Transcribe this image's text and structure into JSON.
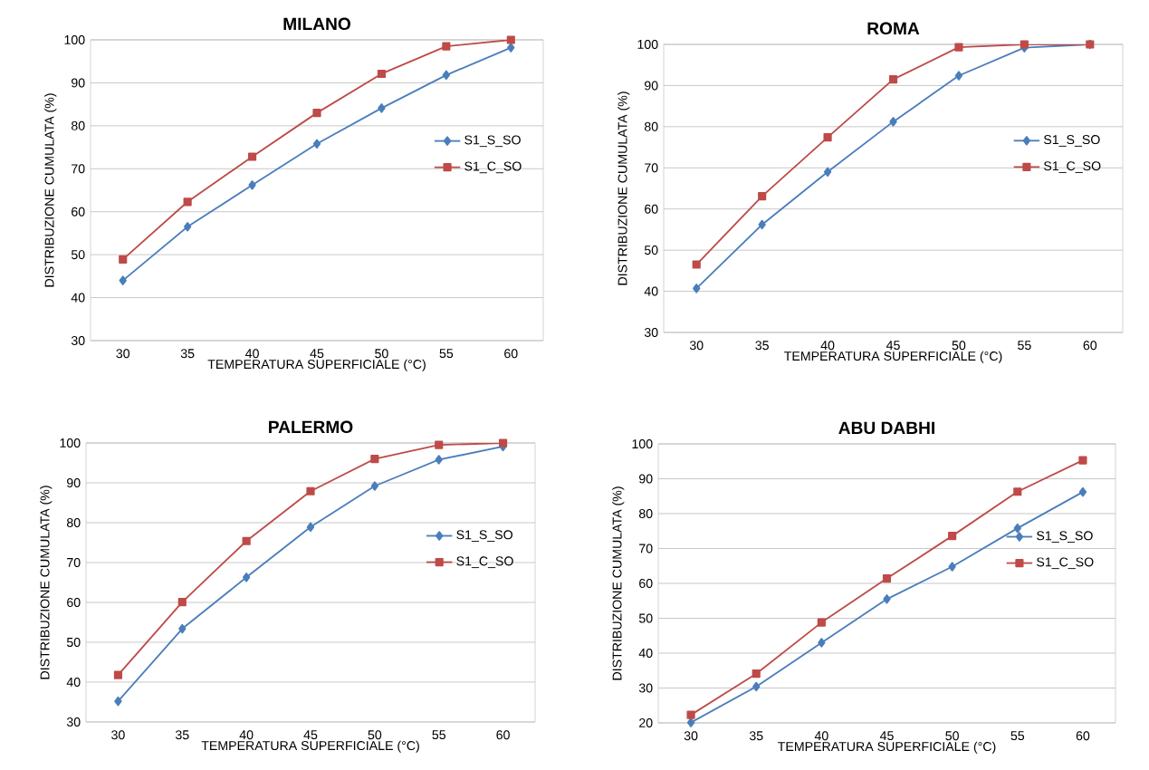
{
  "chart_data": [
    {
      "type": "line",
      "title": "MILANO",
      "xlabel": "TEMPERATURA SUPERFICIALE (°C)",
      "ylabel": "DISTRIBUZIONE CUMULATA (%)",
      "categories": [
        "30",
        "35",
        "40",
        "45",
        "50",
        "55",
        "60"
      ],
      "ylim": [
        30,
        100
      ],
      "yticks": [
        30,
        40,
        50,
        60,
        70,
        80,
        90,
        100
      ],
      "grid": "y",
      "legend": "right",
      "series": [
        {
          "name": "S1_S_SO",
          "color": "#4a7ebb",
          "marker": "diamond",
          "values": [
            44,
            56.5,
            66.2,
            75.8,
            84.1,
            91.8,
            98.2
          ]
        },
        {
          "name": "S1_C_SO",
          "color": "#be4b48",
          "marker": "square",
          "values": [
            48.9,
            62.3,
            72.8,
            83,
            92.1,
            98.5,
            100
          ]
        }
      ]
    },
    {
      "type": "line",
      "title": "ROMA",
      "xlabel": "TEMPERATURA SUPERFICIALE (°C)",
      "ylabel": "DISTRIBUZIONE CUMULATA (%)",
      "categories": [
        "30",
        "35",
        "40",
        "45",
        "50",
        "55",
        "60"
      ],
      "ylim": [
        30,
        100
      ],
      "yticks": [
        30,
        40,
        50,
        60,
        70,
        80,
        90,
        100
      ],
      "grid": "y",
      "legend": "right",
      "series": [
        {
          "name": "S1_S_SO",
          "color": "#4a7ebb",
          "marker": "diamond",
          "values": [
            40.7,
            56.2,
            69,
            81.2,
            92.4,
            99.2,
            100
          ]
        },
        {
          "name": "S1_C_SO",
          "color": "#be4b48",
          "marker": "square",
          "values": [
            46.5,
            63.1,
            77.4,
            91.5,
            99.3,
            100,
            100
          ]
        }
      ]
    },
    {
      "type": "line",
      "title": "PALERMO",
      "xlabel": "TEMPERATURA SUPERFICIALE (°C)",
      "ylabel": "DISTRIBUZIONE CUMULATA (%)",
      "categories": [
        "30",
        "35",
        "40",
        "45",
        "50",
        "55",
        "60"
      ],
      "ylim": [
        30,
        100
      ],
      "yticks": [
        30,
        40,
        50,
        60,
        70,
        80,
        90,
        100
      ],
      "grid": "y",
      "legend": "right",
      "series": [
        {
          "name": "S1_S_SO",
          "color": "#4a7ebb",
          "marker": "diamond",
          "values": [
            35.2,
            53.4,
            66.3,
            78.9,
            89.2,
            95.8,
            99.1
          ]
        },
        {
          "name": "S1_C_SO",
          "color": "#be4b48",
          "marker": "square",
          "values": [
            41.8,
            60.1,
            75.4,
            87.9,
            96,
            99.5,
            100
          ]
        }
      ]
    },
    {
      "type": "line",
      "title": "ABU DABHI",
      "xlabel": "TEMPERATURA SUPERFICIALE (°C)",
      "ylabel": "DISTRIBUZIONE CUMULATA (%)",
      "categories": [
        "30",
        "35",
        "40",
        "45",
        "50",
        "55",
        "60"
      ],
      "ylim": [
        20,
        100
      ],
      "yticks": [
        20,
        30,
        40,
        50,
        60,
        70,
        80,
        90,
        100
      ],
      "grid": "y",
      "legend": "right",
      "series": [
        {
          "name": "S1_S_SO",
          "color": "#4a7ebb",
          "marker": "diamond",
          "values": [
            20.1,
            30.4,
            43,
            55.5,
            64.8,
            75.8,
            86.2
          ]
        },
        {
          "name": "S1_C_SO",
          "color": "#be4b48",
          "marker": "square",
          "values": [
            22.3,
            34.1,
            48.8,
            61.4,
            73.6,
            86.3,
            95.3
          ]
        }
      ]
    }
  ]
}
